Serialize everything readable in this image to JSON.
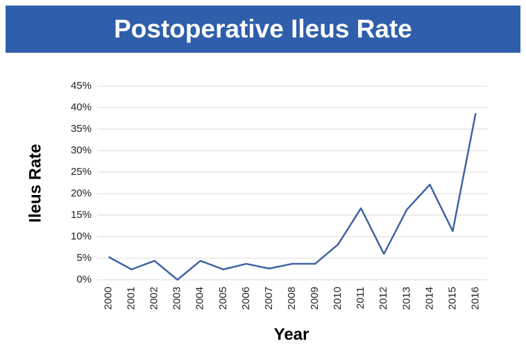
{
  "chart_data": {
    "type": "line",
    "title": "Postoperative Ileus Rate",
    "x_label": "Year",
    "y_label": "Ileus Rate",
    "categories": [
      "2000",
      "2001",
      "2002",
      "2003",
      "2004",
      "2005",
      "2006",
      "2007",
      "2008",
      "2009",
      "2010",
      "2011",
      "2012",
      "2013",
      "2014",
      "2015",
      "2016"
    ],
    "series": [
      {
        "name": "Ileus Rate",
        "color": "#3d62a5",
        "values": [
          5.3,
          2.4,
          4.4,
          0,
          4.4,
          2.4,
          3.7,
          2.6,
          3.7,
          3.7,
          8.2,
          16.6,
          6.0,
          16.3,
          22.1,
          11.3,
          38.7
        ]
      }
    ],
    "ylim": [
      0,
      45
    ],
    "yticks": [
      {
        "value": 0,
        "label": "0%"
      },
      {
        "value": 5,
        "label": "5%"
      },
      {
        "value": 10,
        "label": "10%"
      },
      {
        "value": 15,
        "label": "15%"
      },
      {
        "value": 20,
        "label": "20%"
      },
      {
        "value": 25,
        "label": "25%"
      },
      {
        "value": 30,
        "label": "30%"
      },
      {
        "value": 35,
        "label": "35%"
      },
      {
        "value": 40,
        "label": "40%"
      },
      {
        "value": 45,
        "label": "45%"
      }
    ],
    "grid": true
  }
}
